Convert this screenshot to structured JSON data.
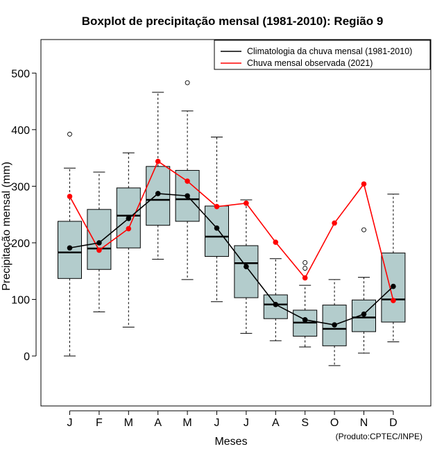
{
  "chart_data": {
    "type": "boxplot",
    "title": "Boxplot de precipitação mensal (1981-2010): Região 9",
    "xlabel": "Meses",
    "ylabel": "Precipitação mensal (mm)",
    "ylim": [
      -90,
      560
    ],
    "yticks": [
      0,
      100,
      200,
      300,
      400,
      500
    ],
    "categories": [
      "J",
      "F",
      "M",
      "A",
      "M",
      "J",
      "J",
      "A",
      "S",
      "O",
      "N",
      "D"
    ],
    "boxes": [
      {
        "min": 0,
        "q1": 137,
        "median": 183,
        "q3": 238,
        "max": 332,
        "outliers": [
          392
        ]
      },
      {
        "min": 78,
        "q1": 153,
        "median": 190,
        "q3": 259,
        "max": 325,
        "outliers": []
      },
      {
        "min": 51,
        "q1": 191,
        "median": 248,
        "q3": 297,
        "max": 359,
        "outliers": []
      },
      {
        "min": 171,
        "q1": 231,
        "median": 276,
        "q3": 335,
        "max": 466,
        "outliers": []
      },
      {
        "min": 135,
        "q1": 238,
        "median": 277,
        "q3": 328,
        "max": 433,
        "outliers": [
          483
        ]
      },
      {
        "min": 96,
        "q1": 176,
        "median": 211,
        "q3": 265,
        "max": 387,
        "outliers": []
      },
      {
        "min": 40,
        "q1": 103,
        "median": 164,
        "q3": 195,
        "max": 276,
        "outliers": []
      },
      {
        "min": 27,
        "q1": 66,
        "median": 91,
        "q3": 108,
        "max": 172,
        "outliers": []
      },
      {
        "min": 16,
        "q1": 35,
        "median": 59,
        "q3": 81,
        "max": 125,
        "outliers": [
          155,
          165
        ]
      },
      {
        "min": -17,
        "q1": 18,
        "median": 48,
        "q3": 90,
        "max": 135,
        "outliers": []
      },
      {
        "min": 5,
        "q1": 43,
        "median": 68,
        "q3": 99,
        "max": 139,
        "outliers": [
          223
        ]
      },
      {
        "min": 25,
        "q1": 60,
        "median": 100,
        "q3": 182,
        "max": 286,
        "outliers": []
      }
    ],
    "series": [
      {
        "name": "Climatologia da chuva mensal (1981-2010)",
        "color": "#000000",
        "values": [
          191,
          200,
          243,
          287,
          283,
          226,
          158,
          91,
          64,
          55,
          74,
          123
        ]
      },
      {
        "name": "Chuva mensal observada (2021)",
        "color": "#ff0000",
        "values": [
          282,
          187,
          225,
          344,
          309,
          264,
          270,
          201,
          138,
          235,
          304,
          98
        ]
      }
    ],
    "box_color": "#b3cccc",
    "legend_position": "top-right"
  },
  "credit": "(Produto:CPTEC/INPE)"
}
